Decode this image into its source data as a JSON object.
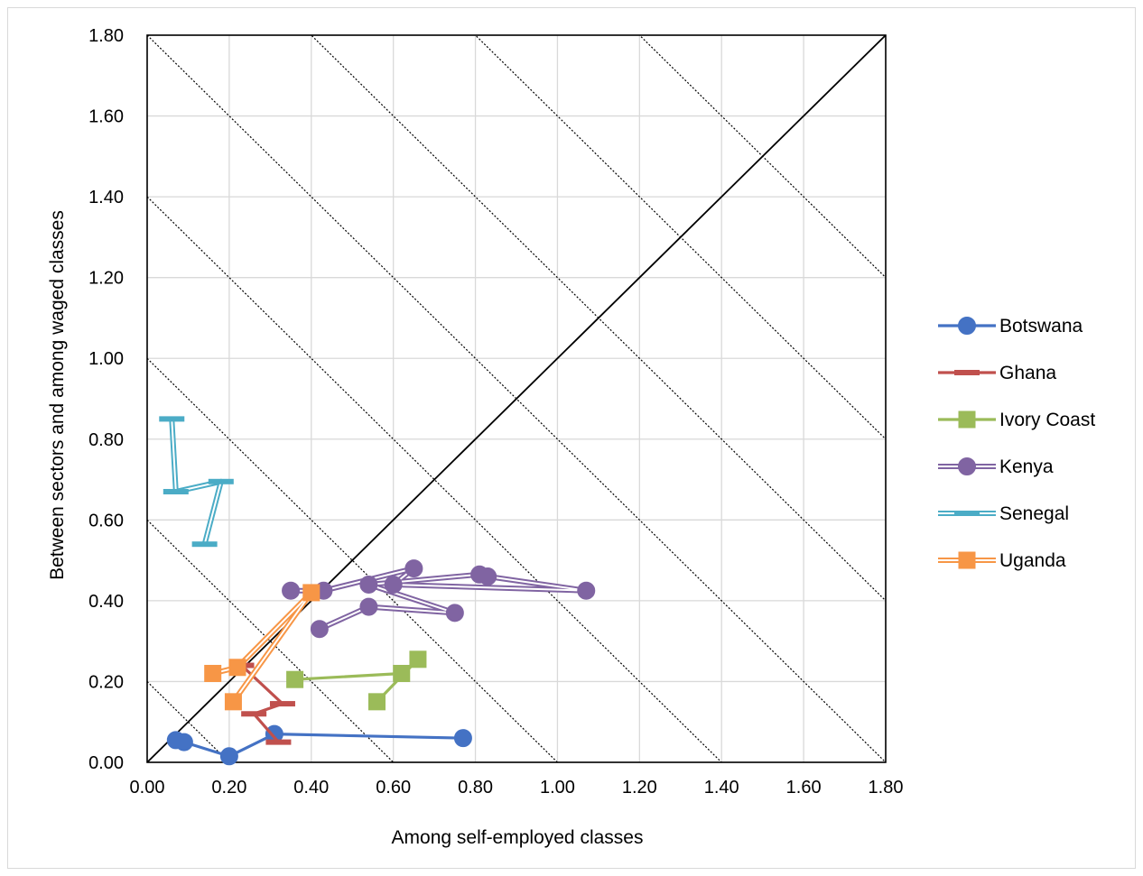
{
  "chart_data": {
    "type": "scatter",
    "title": "",
    "xlabel": "Among self-employed classes",
    "ylabel": "Between sectors and among waged classes",
    "xlim": [
      0,
      1.8
    ],
    "ylim": [
      0,
      1.8
    ],
    "x_ticks": [
      "0.00",
      "0.20",
      "0.40",
      "0.60",
      "0.80",
      "1.00",
      "1.20",
      "1.40",
      "1.60",
      "1.80"
    ],
    "y_ticks": [
      "0.00",
      "0.20",
      "0.40",
      "0.60",
      "0.80",
      "1.00",
      "1.20",
      "1.40",
      "1.60",
      "1.80"
    ],
    "grid": true,
    "legend_position": "right",
    "reference_lines": {
      "diagonal": "y = x",
      "isolines_x_plus_y": [
        0.2,
        0.6,
        1.0,
        1.4,
        1.8,
        2.2,
        2.6,
        3.0
      ]
    },
    "series": [
      {
        "name": "Botswana",
        "color": "#4472C4",
        "marker": "circle",
        "line": "solid",
        "points": [
          [
            0.77,
            0.06
          ],
          [
            0.31,
            0.07
          ],
          [
            0.2,
            0.015
          ],
          [
            0.09,
            0.05
          ],
          [
            0.07,
            0.055
          ]
        ]
      },
      {
        "name": "Ghana",
        "color": "#C0504D",
        "marker": "dash",
        "line": "solid",
        "points": [
          [
            0.32,
            0.05
          ],
          [
            0.26,
            0.12
          ],
          [
            0.33,
            0.145
          ],
          [
            0.23,
            0.24
          ]
        ]
      },
      {
        "name": "Ivory Coast",
        "color": "#9BBB59",
        "marker": "square",
        "line": "solid",
        "points": [
          [
            0.36,
            0.205
          ],
          [
            0.62,
            0.22
          ],
          [
            0.66,
            0.255
          ],
          [
            0.56,
            0.15
          ]
        ]
      },
      {
        "name": "Kenya",
        "color": "#8064A2",
        "marker": "circle",
        "line": "double",
        "points": [
          [
            0.35,
            0.425
          ],
          [
            0.43,
            0.425
          ],
          [
            0.65,
            0.48
          ],
          [
            0.6,
            0.44
          ],
          [
            1.07,
            0.425
          ],
          [
            0.83,
            0.46
          ],
          [
            0.81,
            0.465
          ],
          [
            0.54,
            0.44
          ],
          [
            0.75,
            0.37
          ],
          [
            0.54,
            0.385
          ],
          [
            0.42,
            0.33
          ]
        ]
      },
      {
        "name": "Senegal",
        "color": "#4BACC6",
        "marker": "dash",
        "line": "double",
        "points": [
          [
            0.06,
            0.85
          ],
          [
            0.07,
            0.67
          ],
          [
            0.18,
            0.695
          ],
          [
            0.14,
            0.54
          ]
        ]
      },
      {
        "name": "Uganda",
        "color": "#F79646",
        "marker": "square",
        "line": "double",
        "points": [
          [
            0.16,
            0.22
          ],
          [
            0.22,
            0.235
          ],
          [
            0.4,
            0.42
          ],
          [
            0.21,
            0.15
          ]
        ]
      }
    ]
  }
}
